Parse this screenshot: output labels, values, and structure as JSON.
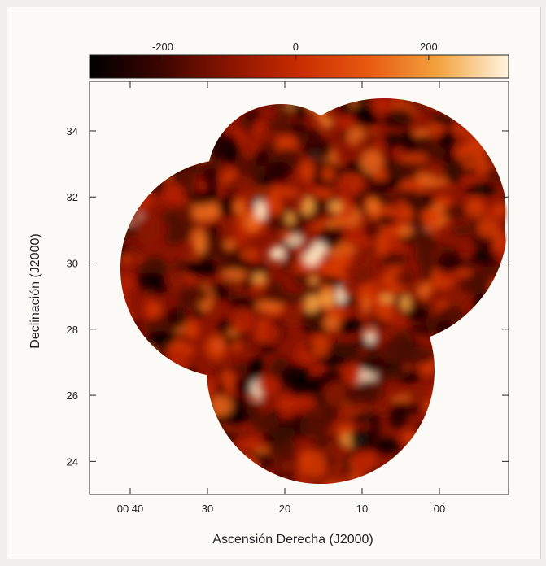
{
  "chart_data": {
    "type": "heatmap",
    "title": "",
    "xlabel": "Ascensión Derecha (J2000)",
    "ylabel": "Declinación (J2000)",
    "x_ticks": [
      "00 40",
      "30",
      "20",
      "10",
      "00"
    ],
    "y_ticks": [
      "34",
      "32",
      "30",
      "28",
      "26",
      "24"
    ],
    "y_range": [
      23,
      35.5
    ],
    "colorbar": {
      "ticks": [
        "-200",
        "0",
        "200"
      ],
      "range": [
        -310,
        320
      ],
      "colors": [
        "#000000",
        "#3b0400",
        "#8a1400",
        "#c82c00",
        "#e85a10",
        "#f3a340",
        "#fff5df"
      ]
    },
    "colors": {
      "background": "#fbfaf7",
      "axis": "#222222"
    },
    "grid": false
  }
}
